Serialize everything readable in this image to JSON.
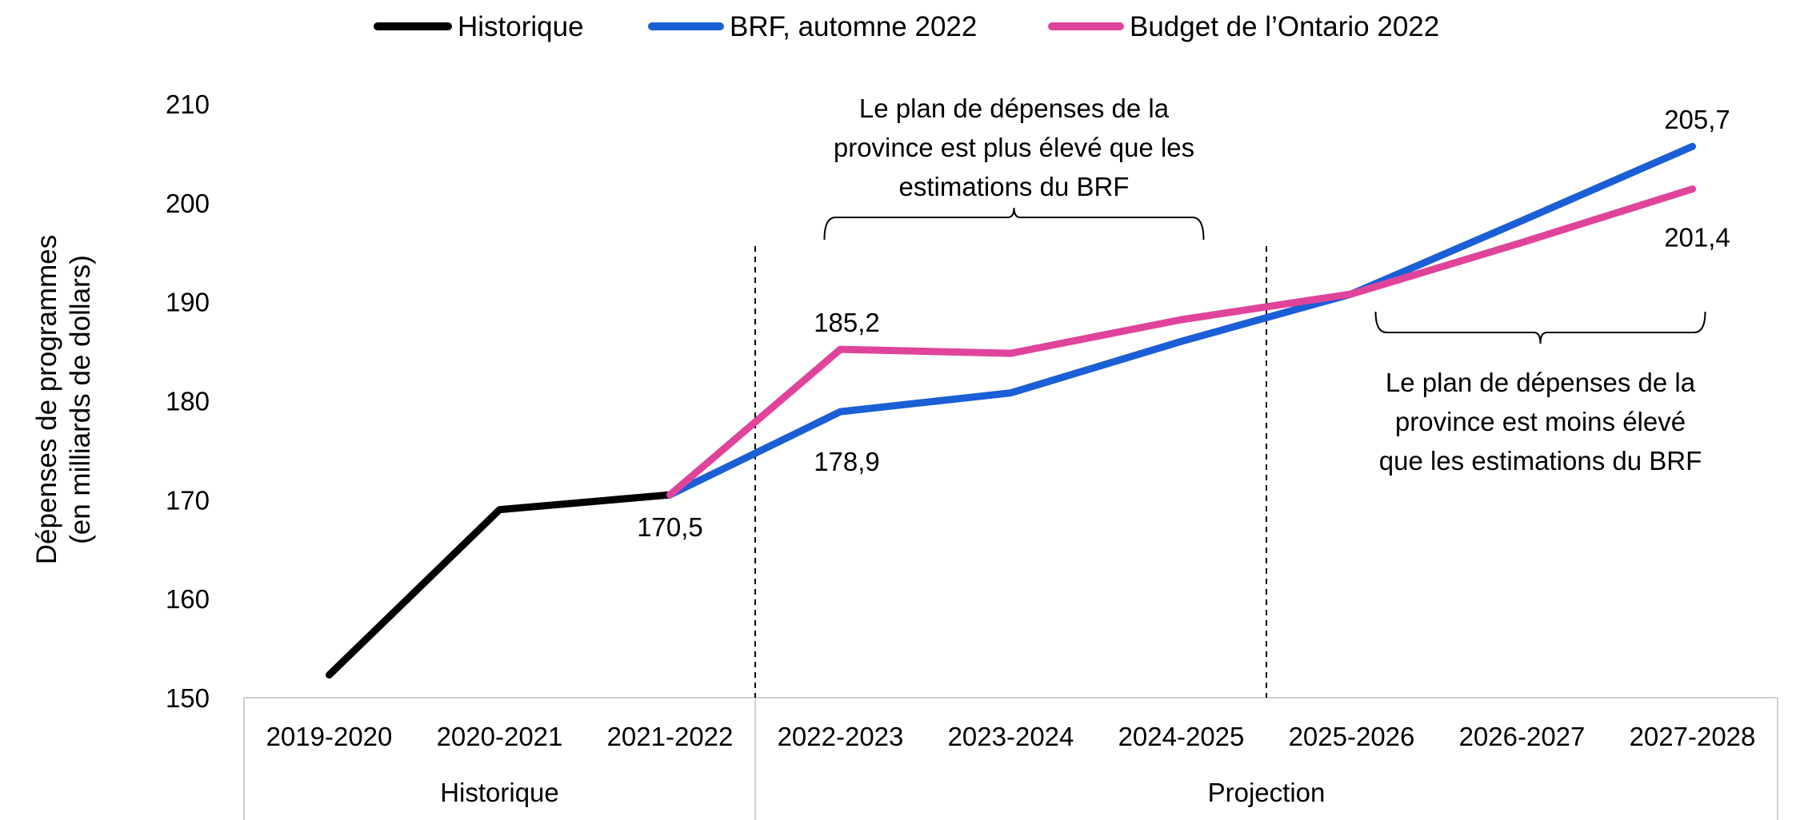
{
  "chart_data": {
    "type": "line",
    "ylabel_lines": [
      "Dépenses de programmes",
      "(en milliards de dollars)"
    ],
    "ylim": [
      150,
      210
    ],
    "yticks": [
      "150",
      "160",
      "170",
      "180",
      "190",
      "200",
      "210"
    ],
    "grid": false,
    "legend_position": "top-center",
    "categories": [
      "2019-2020",
      "2020-2021",
      "2021-2022",
      "2022-2023",
      "2023-2024",
      "2024-2025",
      "2025-2026",
      "2026-2027",
      "2027-2028"
    ],
    "groups": [
      {
        "label": "Historique",
        "categories": [
          "2019-2020",
          "2020-2021",
          "2021-2022"
        ]
      },
      {
        "label": "Projection",
        "categories": [
          "2022-2023",
          "2023-2024",
          "2024-2025",
          "2025-2026",
          "2026-2027",
          "2027-2028"
        ]
      }
    ],
    "series": [
      {
        "name": "Historique",
        "color": "#000000",
        "values": [
          152.3,
          169.0,
          170.5,
          null,
          null,
          null,
          null,
          null,
          null
        ]
      },
      {
        "name": "BRF, automne 2022",
        "color": "#1a5fd6",
        "values": [
          null,
          null,
          170.5,
          178.9,
          180.8,
          186.0,
          190.8,
          198.2,
          205.7
        ]
      },
      {
        "name": "Budget de l’Ontario 2022",
        "color": "#e0449a",
        "values": [
          null,
          null,
          170.5,
          185.2,
          184.8,
          188.2,
          190.8,
          196.0,
          201.4
        ]
      }
    ],
    "data_labels": [
      {
        "text": "170,5",
        "series": 0,
        "category": "2021-2022"
      },
      {
        "text": "185,2",
        "series": 2,
        "category": "2022-2023"
      },
      {
        "text": "178,9",
        "series": 1,
        "category": "2022-2023"
      },
      {
        "text": "205,7",
        "series": 1,
        "category": "2027-2028"
      },
      {
        "text": "201,4",
        "series": 2,
        "category": "2027-2028"
      }
    ],
    "annotations": [
      {
        "lines": [
          "Le plan de dépenses de la",
          "province est plus élevé que les",
          "estimations du BRF"
        ],
        "span": [
          "2022-2023",
          "2024-2025"
        ]
      },
      {
        "lines": [
          "Le plan de dépenses de la",
          "province est moins élevé",
          "que les estimations du BRF"
        ],
        "span": [
          "2025-2026",
          "2027-2028"
        ]
      }
    ]
  }
}
